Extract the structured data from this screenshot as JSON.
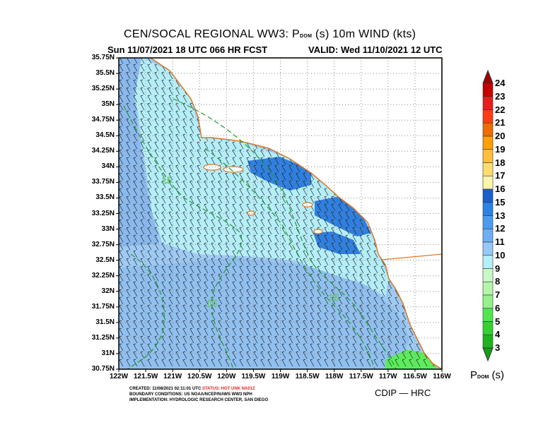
{
  "header": {
    "title_pre": "CEN/SOCAL REGIONAL WW3: P",
    "title_sub": "DOM",
    "title_post": " (s) 10m WIND (kts)",
    "subtitle": "Sun 11/07/2021 18 UTC 066 HR FCST",
    "valid": "VALID: Wed 11/10/2021 12 UTC"
  },
  "axes": {
    "lat_labels": [
      "35.75N",
      "35.5N",
      "35.25N",
      "35N",
      "34.75N",
      "34.5N",
      "34.25N",
      "34N",
      "33.75N",
      "33.5N",
      "33.25N",
      "33N",
      "32.75N",
      "32.5N",
      "32.25N",
      "32N",
      "31.75N",
      "31.5N",
      "31.25N",
      "31N",
      "30.75N"
    ],
    "lon_labels": [
      "122W",
      "121.5W",
      "121W",
      "120.5W",
      "120W",
      "119.5W",
      "119W",
      "118.5W",
      "118W",
      "117.5W",
      "117W",
      "116.5W",
      "116W"
    ]
  },
  "contour_labels": [
    "15",
    "15",
    "15"
  ],
  "colorbar": {
    "levels": [
      "24",
      "23",
      "22",
      "21",
      "20",
      "19",
      "18",
      "17",
      "16",
      "15",
      "13",
      "12",
      "11",
      "10",
      "9",
      "8",
      "7",
      "6",
      "5",
      "4",
      "3"
    ],
    "colors": [
      "#a00000",
      "#c80000",
      "#e61e1e",
      "#ff3c14",
      "#f06a00",
      "#ffa000",
      "#ffbe3c",
      "#ffdc6e",
      "#fff5aa",
      "#1a5fcc",
      "#2a82e6",
      "#4a9cf0",
      "#6eb0f5",
      "#96c8fa",
      "#b4f0fa",
      "#c8fac8",
      "#b4f5aa",
      "#96f08c",
      "#50e650",
      "#32d232",
      "#1eb41e",
      "#14a014"
    ],
    "title_pre": "P",
    "title_sub": "DOM",
    "title_post": " (s)"
  },
  "footer": {
    "created": "CREATED: 11/08/2021 02:11:01 UTC",
    "status": "STATUS: HOT UNK NA01Z",
    "boundary": "BOUNDARY CONDITIONS: US NOAA/NCEP/NAWS WW3 NPH",
    "implementation": "IMPLEMENTATION: HYDROLOGIC RESEARCH CENTER, SAN DIEGO",
    "credit": "CDIP  —  HRC"
  },
  "colors": {
    "sea_light": "#b4eef8",
    "sea_mid": "#9ecbf5",
    "sea_deep": "#8ab9ee",
    "swell_dark": "#2f7fe0",
    "green": "#5cec5c",
    "coast": "#e07820",
    "contour": "#1e9e28"
  }
}
